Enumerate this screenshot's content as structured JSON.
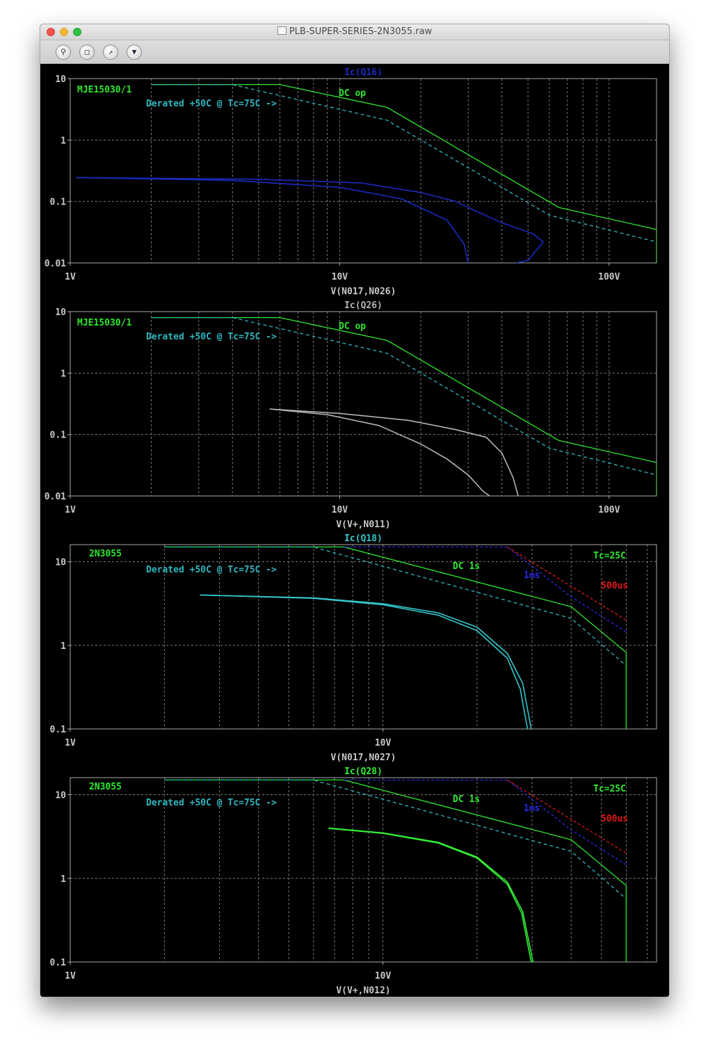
{
  "window": {
    "title": "PLB-SUPER-SERIES-2N3055.raw",
    "toolbar_icons": [
      "zoom-in-icon",
      "zoom-fit-icon",
      "cursor-icon",
      "probe-icon"
    ]
  },
  "colors": {
    "background": "#000000",
    "frame": "#aaaaaa",
    "grid": "#7a7a7a",
    "soa_dc": "#2ee82e",
    "soa_derated": "#2fb7bf",
    "soa_1ms": "#2a2ae0",
    "soa_500us": "#e01818"
  },
  "chart_data": [
    {
      "type": "line",
      "title": "Ic(Q16)",
      "xlabel": "V(N017,N026)",
      "xscale": "log",
      "yscale": "log",
      "xlim": [
        1,
        150
      ],
      "ylim": [
        0.01,
        10
      ],
      "xticks": [
        "1V",
        "10V",
        "100V"
      ],
      "yticks": [
        "10",
        "1",
        "0.1",
        "0.01"
      ],
      "grid": true,
      "annotations": [
        "MJE15030/1",
        "DC op",
        "Derated +50C @ Tc=75C ->"
      ],
      "series": [
        {
          "role": "dc",
          "values": [
            [
              2,
              8
            ],
            [
              6,
              8
            ],
            [
              15,
              3.4
            ],
            [
              65,
              0.08
            ],
            [
              150,
              0.035
            ],
            [
              150,
              0.01
            ]
          ]
        },
        {
          "role": "derated",
          "values": [
            [
              2,
              8
            ],
            [
              4,
              8
            ],
            [
              15,
              2.1
            ],
            [
              60,
              0.06
            ],
            [
              150,
              0.022
            ]
          ]
        },
        {
          "role": "trace",
          "name": "Ic(Q16)",
          "color": "#1a2bc0",
          "values": [
            [
              1.05,
              0.245
            ],
            [
              5,
              0.23
            ],
            [
              12,
              0.2
            ],
            [
              20,
              0.14
            ],
            [
              27,
              0.1
            ],
            [
              32,
              0.07
            ],
            [
              40,
              0.045
            ],
            [
              52,
              0.03
            ],
            [
              57,
              0.022
            ],
            [
              50,
              0.011
            ],
            [
              45,
              0.01
            ]
          ]
        },
        {
          "role": "trace",
          "name": "Ic(Q16)",
          "color": "#1a2bc0",
          "values": [
            [
              1.05,
              0.245
            ],
            [
              4,
              0.22
            ],
            [
              10,
              0.17
            ],
            [
              17,
              0.11
            ],
            [
              25,
              0.05
            ],
            [
              29,
              0.02
            ],
            [
              30,
              0.01
            ]
          ]
        }
      ]
    },
    {
      "type": "line",
      "title": "Ic(Q26)",
      "xlabel": "V(V+,N011)",
      "xscale": "log",
      "yscale": "log",
      "xlim": [
        1,
        150
      ],
      "ylim": [
        0.01,
        10
      ],
      "xticks": [
        "1V",
        "10V",
        "100V"
      ],
      "yticks": [
        "10",
        "1",
        "0.1",
        "0.01"
      ],
      "grid": true,
      "annotations": [
        "MJE15030/1",
        "DC op",
        "Derated +50C @ Tc=75C ->"
      ],
      "series": [
        {
          "role": "dc",
          "values": [
            [
              2,
              8
            ],
            [
              6,
              8
            ],
            [
              15,
              3.4
            ],
            [
              65,
              0.08
            ],
            [
              150,
              0.035
            ],
            [
              150,
              0.01
            ]
          ]
        },
        {
          "role": "derated",
          "values": [
            [
              2,
              8
            ],
            [
              4,
              8
            ],
            [
              15,
              2.1
            ],
            [
              60,
              0.06
            ],
            [
              150,
              0.022
            ]
          ]
        },
        {
          "role": "trace",
          "name": "Ic(Q26)",
          "color": "#b4b4b4",
          "values": [
            [
              5.5,
              0.26
            ],
            [
              10,
              0.22
            ],
            [
              18,
              0.17
            ],
            [
              27,
              0.12
            ],
            [
              35,
              0.09
            ],
            [
              40,
              0.05
            ],
            [
              44,
              0.02
            ],
            [
              46,
              0.01
            ]
          ]
        },
        {
          "role": "trace",
          "name": "Ic(Q26)",
          "color": "#b4b4b4",
          "values": [
            [
              5.5,
              0.26
            ],
            [
              9,
              0.21
            ],
            [
              14,
              0.14
            ],
            [
              20,
              0.07
            ],
            [
              25,
              0.04
            ],
            [
              30,
              0.022
            ],
            [
              34,
              0.012
            ],
            [
              36,
              0.01
            ]
          ]
        }
      ]
    },
    {
      "type": "line",
      "title": "Ic(Q18)",
      "xlabel": "V(N017,N027)",
      "xscale": "log",
      "yscale": "log",
      "xlim": [
        1,
        75
      ],
      "ylim": [
        0.1,
        16
      ],
      "xticks": [
        "1V",
        "10V"
      ],
      "yticks": [
        "10",
        "1",
        "0.1"
      ],
      "grid": true,
      "annotations": [
        "2N3055",
        "Derated +50C @ Tc=75C ->",
        "DC 1s",
        "1ms",
        "Tc=25C",
        "500us"
      ],
      "series": [
        {
          "role": "dc",
          "values": [
            [
              2,
              15
            ],
            [
              7.5,
              15
            ],
            [
              40,
              2.9
            ],
            [
              60,
              0.82
            ],
            [
              60,
              0.1
            ]
          ]
        },
        {
          "role": "derated",
          "values": [
            [
              2,
              15
            ],
            [
              6,
              15
            ],
            [
              40,
              2.1
            ],
            [
              60,
              0.57
            ]
          ]
        },
        {
          "role": "1ms",
          "values": [
            [
              7.5,
              15
            ],
            [
              25,
              15
            ],
            [
              40,
              3.8
            ],
            [
              60,
              1.45
            ]
          ]
        },
        {
          "role": "500us",
          "values": [
            [
              25,
              15
            ],
            [
              60,
              2.0
            ]
          ]
        },
        {
          "role": "trace",
          "name": "Ic(Q18)",
          "color": "#35c6cc",
          "values": [
            [
              2.6,
              4.0
            ],
            [
              6,
              3.7
            ],
            [
              10,
              3.15
            ],
            [
              15,
              2.45
            ],
            [
              20,
              1.65
            ],
            [
              25,
              0.8
            ],
            [
              28,
              0.35
            ],
            [
              29.8,
              0.1
            ]
          ]
        },
        {
          "role": "trace",
          "name": "Ic(Q18)",
          "color": "#35c6cc",
          "values": [
            [
              2.6,
              4.0
            ],
            [
              6,
              3.65
            ],
            [
              10,
              3.05
            ],
            [
              15,
              2.3
            ],
            [
              20,
              1.5
            ],
            [
              25,
              0.7
            ],
            [
              27.5,
              0.3
            ],
            [
              29.0,
              0.1
            ]
          ]
        }
      ]
    },
    {
      "type": "line",
      "title": "Ic(Q28)",
      "xlabel": "V(V+,N012)",
      "xscale": "log",
      "yscale": "log",
      "xlim": [
        1,
        75
      ],
      "ylim": [
        0.1,
        16
      ],
      "xticks": [
        "1V",
        "10V"
      ],
      "yticks": [
        "10",
        "1",
        "0.1"
      ],
      "grid": true,
      "annotations": [
        "2N3055",
        "Derated +50C @ Tc=75C ->",
        "DC 1s",
        "1ms",
        "Tc=25C",
        "500us"
      ],
      "series": [
        {
          "role": "dc",
          "values": [
            [
              2,
              15
            ],
            [
              7.5,
              15
            ],
            [
              40,
              2.9
            ],
            [
              60,
              0.82
            ],
            [
              60,
              0.1
            ]
          ]
        },
        {
          "role": "derated",
          "values": [
            [
              2,
              15
            ],
            [
              6,
              15
            ],
            [
              40,
              2.1
            ],
            [
              60,
              0.57
            ]
          ]
        },
        {
          "role": "1ms",
          "values": [
            [
              7.5,
              15
            ],
            [
              25,
              15
            ],
            [
              40,
              3.8
            ],
            [
              60,
              1.45
            ]
          ]
        },
        {
          "role": "500us",
          "values": [
            [
              25,
              15
            ],
            [
              60,
              2.0
            ]
          ]
        },
        {
          "role": "trace",
          "name": "Ic(Q28)",
          "color": "#35ef35",
          "values": [
            [
              6.7,
              4.0
            ],
            [
              10,
              3.5
            ],
            [
              15,
              2.7
            ],
            [
              20,
              1.8
            ],
            [
              25,
              0.9
            ],
            [
              28,
              0.4
            ],
            [
              30.2,
              0.1
            ]
          ]
        },
        {
          "role": "trace",
          "name": "Ic(Q28)",
          "color": "#35ef35",
          "values": [
            [
              6.7,
              3.95
            ],
            [
              10,
              3.45
            ],
            [
              15,
              2.65
            ],
            [
              20,
              1.75
            ],
            [
              25,
              0.85
            ],
            [
              27.8,
              0.38
            ],
            [
              29.8,
              0.1
            ]
          ]
        }
      ]
    }
  ]
}
